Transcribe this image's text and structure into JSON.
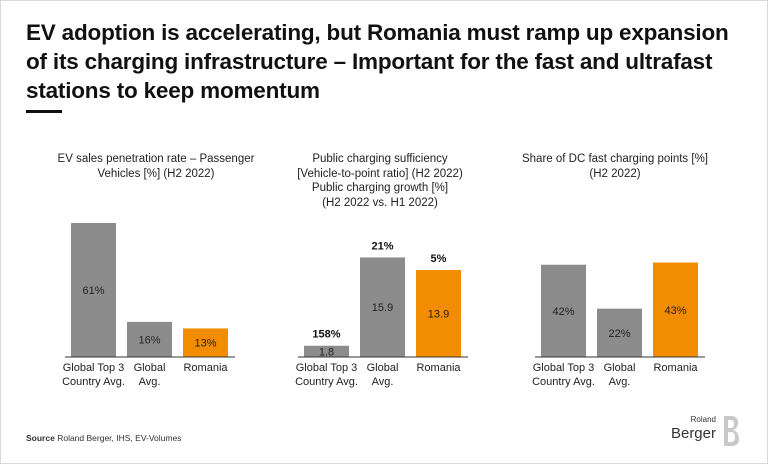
{
  "headline": "EV adoption is accelerating, but Romania must ramp up expansion of its charging infrastructure – Important for the fast and ultrafast stations to keep momentum",
  "panels": [
    {
      "title_lines": [
        "EV sales penetration rate – Passenger",
        "Vehicles [%] (H2 2022)"
      ]
    },
    {
      "title_lines": [
        "Public charging sufficiency",
        "[Vehicle-to-point ratio] (H2 2022)",
        "Public charging growth [%]",
        "(H2 2022 vs. H1 2022)"
      ]
    },
    {
      "title_lines": [
        "Share of DC fast charging points [%]",
        "(H2 2022)"
      ]
    }
  ],
  "chart_data": [
    {
      "type": "bar",
      "title": "EV sales penetration rate – Passenger Vehicles [%] (H2 2022)",
      "categories": [
        [
          "Global Top 3",
          "Country Avg."
        ],
        [
          "Global",
          "Avg."
        ],
        [
          "Romania"
        ]
      ],
      "values": [
        61,
        16,
        13
      ],
      "value_labels": [
        "61%",
        "16%",
        "13%"
      ],
      "colors": [
        "#8c8c8c",
        "#8c8c8c",
        "#f28c00"
      ],
      "ylim": [
        0,
        61
      ]
    },
    {
      "type": "bar",
      "title": "Public charging sufficiency [Vehicle-to-point ratio] (H2 2022) / Public charging growth [%] (H2 2022 vs. H1 2022)",
      "categories": [
        [
          "Global Top 3",
          "Country Avg."
        ],
        [
          "Global",
          "Avg."
        ],
        [
          "Romania"
        ]
      ],
      "values": [
        1.8,
        15.9,
        13.9
      ],
      "value_labels": [
        "1.8",
        "15.9",
        "13.9"
      ],
      "growth_labels": [
        "158%",
        "21%",
        "5%"
      ],
      "colors": [
        "#8c8c8c",
        "#8c8c8c",
        "#f28c00"
      ],
      "ylim": [
        0,
        21.4
      ]
    },
    {
      "type": "bar",
      "title": "Share of DC fast charging points [%] (H2 2022)",
      "categories": [
        [
          "Global Top 3",
          "Country Avg."
        ],
        [
          "Global",
          "Avg."
        ],
        [
          "Romania"
        ]
      ],
      "values": [
        42,
        22,
        43
      ],
      "value_labels": [
        "42%",
        "22%",
        "43%"
      ],
      "colors": [
        "#8c8c8c",
        "#8c8c8c",
        "#f28c00"
      ],
      "ylim": [
        0,
        61
      ]
    }
  ],
  "source": {
    "label": "Source",
    "text": "Roland Berger, IHS, EV-Volumes"
  },
  "logo": {
    "top": "Roland",
    "main": "Berger"
  },
  "colors": {
    "gray_bar": "#8c8c8c",
    "orange_bar": "#f28c00",
    "axis": "#333333"
  }
}
